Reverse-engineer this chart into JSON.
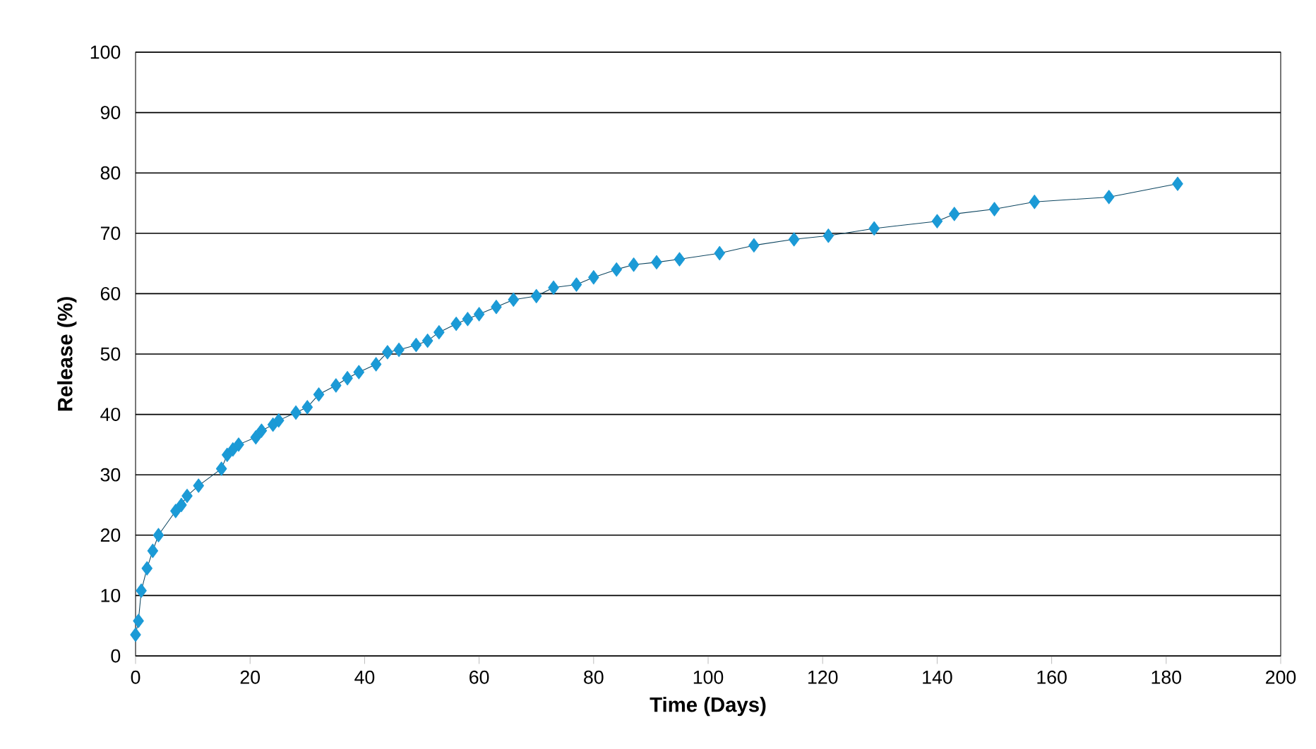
{
  "chart_data": {
    "type": "line",
    "xlabel": "Time (Days)",
    "ylabel": "Release (%)",
    "x": [
      0,
      0.5,
      1,
      2,
      3,
      4,
      7,
      8,
      9,
      11,
      15,
      16,
      17,
      18,
      21,
      22,
      24,
      25,
      28,
      30,
      32,
      35,
      37,
      39,
      42,
      44,
      46,
      49,
      51,
      53,
      56,
      58,
      60,
      63,
      66,
      70,
      73,
      77,
      80,
      84,
      87,
      91,
      95,
      102,
      108,
      115,
      121,
      129,
      140,
      143,
      150,
      157,
      170,
      182
    ],
    "series": [
      {
        "color": "#1b9ad6",
        "values": [
          3.5,
          5.8,
          10.8,
          14.5,
          17.4,
          20,
          24,
          25,
          26.5,
          28.2,
          31,
          33.3,
          34.2,
          35,
          36.2,
          37.3,
          38.3,
          39,
          40.3,
          41.2,
          43.3,
          44.8,
          46,
          47,
          48.3,
          50.3,
          50.7,
          51.5,
          52.2,
          53.6,
          55,
          55.8,
          56.6,
          57.8,
          59,
          59.6,
          61,
          61.5,
          62.7,
          64,
          64.8,
          65.2,
          65.7,
          66.7,
          68,
          69,
          69.6,
          70.8,
          72,
          73.2,
          74,
          75.2,
          76,
          78.2
        ]
      }
    ],
    "xlim": [
      0,
      200
    ],
    "xticks": [
      0,
      20,
      40,
      60,
      80,
      100,
      120,
      140,
      160,
      180,
      200
    ],
    "ylim": [
      0,
      100
    ],
    "yticks": [
      0,
      10,
      20,
      30,
      40,
      50,
      60,
      70,
      80,
      90,
      100
    ],
    "grid": "y",
    "marker": "diamond",
    "line_style": "solid"
  }
}
